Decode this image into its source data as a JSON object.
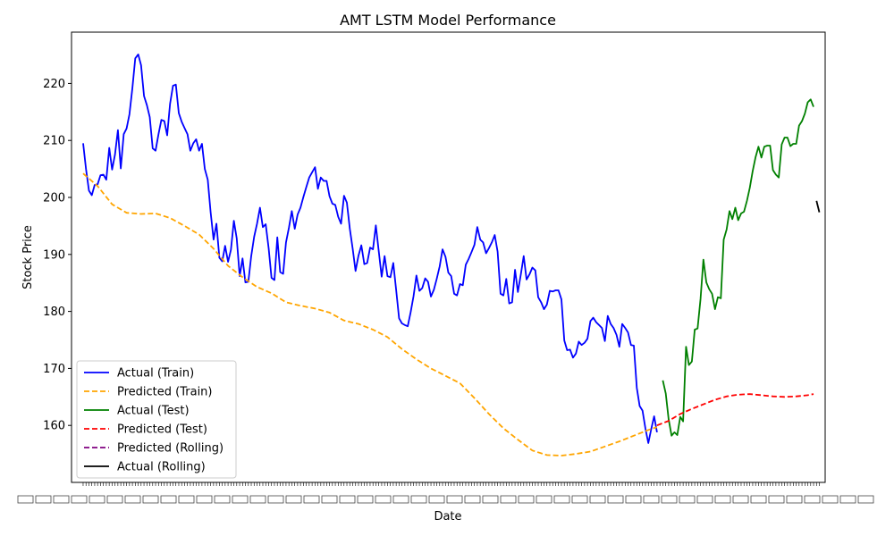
{
  "chart_data": {
    "type": "line",
    "title": "AMT LSTM Model Performance",
    "xlabel": "Date",
    "ylabel": "Stock Price",
    "ylim": [
      150,
      229
    ],
    "y_ticks": [
      160,
      170,
      180,
      190,
      200,
      210,
      220
    ],
    "grid": false,
    "legend_position": "bottom-left",
    "series": [
      {
        "name": "Actual (Train)",
        "color": "#0000ff",
        "dash": "solid",
        "points": [
          [
            0,
            209.5
          ],
          [
            1,
            205.0
          ],
          [
            2,
            201.2
          ],
          [
            3,
            200.4
          ],
          [
            4,
            202.2
          ],
          [
            5,
            202.3
          ],
          [
            6,
            203.9
          ],
          [
            7,
            204.0
          ],
          [
            8,
            203.1
          ],
          [
            9,
            208.7
          ],
          [
            10,
            204.9
          ],
          [
            11,
            207.5
          ],
          [
            12,
            211.8
          ],
          [
            13,
            205.1
          ],
          [
            14,
            211.1
          ],
          [
            15,
            212.1
          ],
          [
            16,
            214.6
          ],
          [
            17,
            219.2
          ],
          [
            18,
            224.4
          ],
          [
            19,
            225.1
          ],
          [
            20,
            223.2
          ],
          [
            21,
            217.8
          ],
          [
            22,
            216.2
          ],
          [
            23,
            214.1
          ],
          [
            24,
            208.6
          ],
          [
            25,
            208.2
          ],
          [
            26,
            211.1
          ],
          [
            27,
            213.6
          ],
          [
            28,
            213.4
          ],
          [
            29,
            210.9
          ],
          [
            30,
            216.4
          ],
          [
            31,
            219.6
          ],
          [
            32,
            219.8
          ],
          [
            33,
            214.8
          ],
          [
            34,
            213.3
          ],
          [
            35,
            212.2
          ],
          [
            36,
            211.1
          ],
          [
            37,
            208.2
          ],
          [
            38,
            209.5
          ],
          [
            39,
            210.2
          ],
          [
            40,
            208.2
          ],
          [
            41,
            209.4
          ],
          [
            42,
            205.0
          ],
          [
            43,
            203.1
          ],
          [
            44,
            197.4
          ],
          [
            45,
            192.6
          ],
          [
            46,
            195.4
          ],
          [
            47,
            189.4
          ],
          [
            48,
            188.8
          ],
          [
            49,
            191.5
          ],
          [
            50,
            188.7
          ],
          [
            51,
            190.8
          ],
          [
            52,
            195.9
          ],
          [
            53,
            192.8
          ],
          [
            54,
            186.2
          ],
          [
            55,
            189.3
          ],
          [
            56,
            185.1
          ],
          [
            57,
            185.2
          ],
          [
            58,
            189.7
          ],
          [
            59,
            193.1
          ],
          [
            60,
            195.4
          ],
          [
            61,
            198.2
          ],
          [
            62,
            194.8
          ],
          [
            63,
            195.3
          ],
          [
            64,
            191.1
          ],
          [
            65,
            185.9
          ],
          [
            66,
            185.5
          ],
          [
            67,
            193.0
          ],
          [
            68,
            186.9
          ],
          [
            69,
            186.6
          ],
          [
            70,
            192.1
          ],
          [
            71,
            194.7
          ],
          [
            72,
            197.6
          ],
          [
            73,
            194.5
          ],
          [
            74,
            197.0
          ],
          [
            75,
            198.2
          ],
          [
            76,
            200.1
          ],
          [
            77,
            201.8
          ],
          [
            78,
            203.5
          ],
          [
            79,
            204.4
          ],
          [
            80,
            205.3
          ],
          [
            81,
            201.5
          ],
          [
            82,
            203.5
          ],
          [
            83,
            202.9
          ],
          [
            84,
            202.9
          ],
          [
            85,
            200.2
          ],
          [
            86,
            198.9
          ],
          [
            87,
            198.7
          ],
          [
            88,
            196.6
          ],
          [
            89,
            195.4
          ],
          [
            90,
            200.3
          ],
          [
            91,
            199.1
          ],
          [
            92,
            194.5
          ],
          [
            93,
            191.0
          ],
          [
            94,
            187.1
          ],
          [
            95,
            189.8
          ],
          [
            96,
            191.6
          ],
          [
            97,
            188.3
          ],
          [
            98,
            188.5
          ],
          [
            99,
            191.2
          ],
          [
            100,
            190.9
          ],
          [
            101,
            195.1
          ],
          [
            102,
            190.5
          ],
          [
            103,
            186.1
          ],
          [
            104,
            189.7
          ],
          [
            105,
            186.2
          ],
          [
            106,
            186.0
          ],
          [
            107,
            188.5
          ],
          [
            108,
            183.8
          ],
          [
            109,
            178.8
          ],
          [
            110,
            177.9
          ],
          [
            111,
            177.6
          ],
          [
            112,
            177.4
          ],
          [
            113,
            179.9
          ],
          [
            114,
            182.7
          ],
          [
            115,
            186.3
          ],
          [
            116,
            183.6
          ],
          [
            117,
            184.1
          ],
          [
            118,
            185.8
          ],
          [
            119,
            185.2
          ],
          [
            120,
            182.6
          ],
          [
            121,
            183.8
          ],
          [
            122,
            185.7
          ],
          [
            123,
            187.9
          ],
          [
            124,
            190.9
          ],
          [
            125,
            189.6
          ],
          [
            126,
            186.8
          ],
          [
            127,
            186.2
          ],
          [
            128,
            183.1
          ],
          [
            129,
            182.8
          ],
          [
            130,
            184.8
          ],
          [
            131,
            184.6
          ],
          [
            132,
            188.2
          ],
          [
            133,
            189.2
          ],
          [
            134,
            190.4
          ],
          [
            135,
            191.7
          ],
          [
            136,
            194.8
          ],
          [
            137,
            192.6
          ],
          [
            138,
            192.1
          ],
          [
            139,
            190.2
          ],
          [
            140,
            191.1
          ],
          [
            141,
            192.1
          ],
          [
            142,
            193.4
          ],
          [
            143,
            190.5
          ],
          [
            144,
            183.1
          ],
          [
            145,
            182.8
          ],
          [
            146,
            185.7
          ],
          [
            147,
            181.4
          ],
          [
            148,
            181.6
          ],
          [
            149,
            187.3
          ],
          [
            150,
            183.4
          ],
          [
            151,
            186.5
          ],
          [
            152,
            189.7
          ],
          [
            153,
            185.6
          ],
          [
            154,
            186.5
          ],
          [
            155,
            187.7
          ],
          [
            156,
            187.2
          ],
          [
            157,
            182.5
          ],
          [
            158,
            181.6
          ],
          [
            159,
            180.4
          ],
          [
            160,
            181.2
          ],
          [
            161,
            183.6
          ],
          [
            162,
            183.5
          ],
          [
            163,
            183.7
          ],
          [
            164,
            183.7
          ],
          [
            165,
            182.1
          ],
          [
            166,
            174.9
          ],
          [
            167,
            173.2
          ],
          [
            168,
            173.3
          ],
          [
            169,
            171.9
          ],
          [
            170,
            172.6
          ],
          [
            171,
            174.7
          ],
          [
            172,
            174.1
          ],
          [
            173,
            174.5
          ],
          [
            174,
            175.2
          ],
          [
            175,
            178.3
          ],
          [
            176,
            178.9
          ],
          [
            177,
            178.1
          ],
          [
            178,
            177.6
          ],
          [
            179,
            177.1
          ],
          [
            180,
            174.8
          ],
          [
            181,
            179.2
          ],
          [
            182,
            177.8
          ],
          [
            183,
            177.1
          ],
          [
            184,
            175.9
          ],
          [
            185,
            173.8
          ],
          [
            186,
            177.8
          ],
          [
            187,
            177.1
          ],
          [
            188,
            176.3
          ],
          [
            189,
            174.1
          ],
          [
            190,
            174.0
          ],
          [
            191,
            166.6
          ],
          [
            192,
            163.4
          ],
          [
            193,
            162.6
          ],
          [
            194,
            159.4
          ],
          [
            195,
            156.9
          ],
          [
            196,
            159.4
          ],
          [
            197,
            161.6
          ],
          [
            198,
            158.8
          ]
        ]
      },
      {
        "name": "Predicted (Train)",
        "color": "#ffa500",
        "dash": "dashed",
        "points": [
          [
            0,
            204.2
          ],
          [
            5,
            202.0
          ],
          [
            10,
            198.8
          ],
          [
            15,
            197.3
          ],
          [
            20,
            197.1
          ],
          [
            25,
            197.2
          ],
          [
            30,
            196.4
          ],
          [
            35,
            195.0
          ],
          [
            40,
            193.5
          ],
          [
            45,
            191.0
          ],
          [
            50,
            188.0
          ],
          [
            55,
            186.0
          ],
          [
            60,
            184.3
          ],
          [
            65,
            183.2
          ],
          [
            70,
            181.6
          ],
          [
            75,
            181.0
          ],
          [
            80,
            180.5
          ],
          [
            85,
            179.8
          ],
          [
            90,
            178.4
          ],
          [
            95,
            177.8
          ],
          [
            100,
            176.8
          ],
          [
            105,
            175.5
          ],
          [
            110,
            173.4
          ],
          [
            115,
            171.6
          ],
          [
            120,
            170.0
          ],
          [
            125,
            168.7
          ],
          [
            130,
            167.4
          ],
          [
            135,
            164.8
          ],
          [
            140,
            162.0
          ],
          [
            145,
            159.5
          ],
          [
            150,
            157.5
          ],
          [
            155,
            155.6
          ],
          [
            160,
            154.8
          ],
          [
            165,
            154.7
          ],
          [
            170,
            155.0
          ],
          [
            175,
            155.4
          ],
          [
            180,
            156.3
          ],
          [
            185,
            157.2
          ],
          [
            190,
            158.2
          ],
          [
            195,
            159.2
          ],
          [
            198,
            159.7
          ]
        ]
      },
      {
        "name": "Actual (Test)",
        "color": "#008000",
        "dash": "solid",
        "points": [
          [
            200,
            167.9
          ],
          [
            201,
            165.6
          ],
          [
            202,
            161.1
          ],
          [
            203,
            158.2
          ],
          [
            204,
            158.8
          ],
          [
            205,
            158.3
          ],
          [
            206,
            161.5
          ],
          [
            207,
            160.7
          ],
          [
            208,
            173.8
          ],
          [
            209,
            170.6
          ],
          [
            210,
            171.2
          ],
          [
            211,
            176.8
          ],
          [
            212,
            177.0
          ],
          [
            213,
            182.2
          ],
          [
            214,
            189.1
          ],
          [
            215,
            185.1
          ],
          [
            216,
            183.9
          ],
          [
            217,
            183.1
          ],
          [
            218,
            180.4
          ],
          [
            219,
            182.5
          ],
          [
            220,
            182.3
          ],
          [
            221,
            192.6
          ],
          [
            222,
            194.4
          ],
          [
            223,
            197.6
          ],
          [
            224,
            196.2
          ],
          [
            225,
            198.2
          ],
          [
            226,
            196.0
          ],
          [
            227,
            197.2
          ],
          [
            228,
            197.5
          ],
          [
            229,
            199.4
          ],
          [
            230,
            201.7
          ],
          [
            231,
            204.6
          ],
          [
            232,
            207.1
          ],
          [
            233,
            208.9
          ],
          [
            234,
            207.0
          ],
          [
            235,
            208.9
          ],
          [
            236,
            209.1
          ],
          [
            237,
            209.1
          ],
          [
            238,
            204.8
          ],
          [
            239,
            204.0
          ],
          [
            240,
            203.5
          ],
          [
            241,
            209.3
          ],
          [
            242,
            210.5
          ],
          [
            243,
            210.5
          ],
          [
            244,
            209.0
          ],
          [
            245,
            209.4
          ],
          [
            246,
            209.4
          ],
          [
            247,
            212.6
          ],
          [
            248,
            213.4
          ],
          [
            249,
            214.7
          ],
          [
            250,
            216.7
          ],
          [
            251,
            217.2
          ],
          [
            252,
            215.9
          ]
        ]
      },
      {
        "name": "Predicted (Test)",
        "color": "#ff0000",
        "dash": "dashed",
        "points": [
          [
            198,
            160.0
          ],
          [
            202,
            160.8
          ],
          [
            206,
            162.0
          ],
          [
            210,
            162.9
          ],
          [
            214,
            163.7
          ],
          [
            218,
            164.5
          ],
          [
            222,
            165.1
          ],
          [
            226,
            165.4
          ],
          [
            230,
            165.5
          ],
          [
            234,
            165.3
          ],
          [
            238,
            165.1
          ],
          [
            242,
            165.0
          ],
          [
            246,
            165.1
          ],
          [
            250,
            165.3
          ],
          [
            252,
            165.5
          ]
        ]
      },
      {
        "name": "Predicted (Rolling)",
        "color": "#800080",
        "dash": "dashed",
        "points": []
      },
      {
        "name": "Actual (Rolling)",
        "color": "#000000",
        "dash": "solid",
        "points": [
          [
            253,
            199.4
          ],
          [
            254,
            197.4
          ]
        ]
      }
    ]
  }
}
